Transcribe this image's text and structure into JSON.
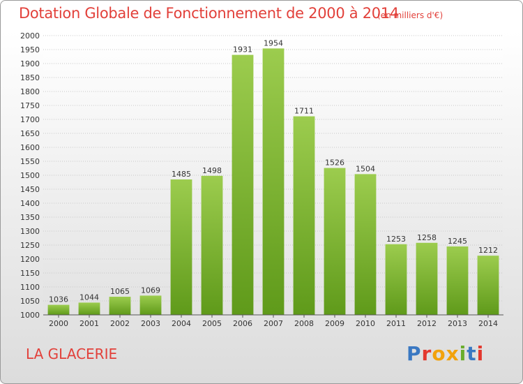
{
  "header": {
    "title": "Dotation Globale de Fonctionnement de 2000 à 2014",
    "subtitle": "(en milliers d'€)"
  },
  "footer": {
    "commune": "LA GLACERIE",
    "logo": "Proxiti",
    "logo_colors": [
      "#3a78c2",
      "#e3382e",
      "#f2a20c",
      "#f2a20c",
      "#6aad2d",
      "#3a78c2",
      "#e3382e"
    ]
  },
  "chart_data": {
    "type": "bar",
    "title": "Dotation Globale de Fonctionnement de 2000 à 2014",
    "subtitle": "(en milliers d'€)",
    "categories": [
      "2000",
      "2001",
      "2002",
      "2003",
      "2004",
      "2005",
      "2006",
      "2007",
      "2008",
      "2009",
      "2010",
      "2011",
      "2012",
      "2013",
      "2014"
    ],
    "values": [
      1036,
      1044,
      1065,
      1069,
      1485,
      1498,
      1931,
      1954,
      1711,
      1526,
      1504,
      1253,
      1258,
      1245,
      1212
    ],
    "ylim": [
      1000,
      2000
    ],
    "yticks": [
      1000,
      1050,
      1100,
      1150,
      1200,
      1250,
      1300,
      1350,
      1400,
      1450,
      1500,
      1550,
      1600,
      1650,
      1700,
      1750,
      1800,
      1850,
      1900,
      1950,
      2000
    ],
    "grid": true,
    "bar_color_top": "#9ccc4e",
    "bar_color_bottom": "#5f9a1a"
  }
}
